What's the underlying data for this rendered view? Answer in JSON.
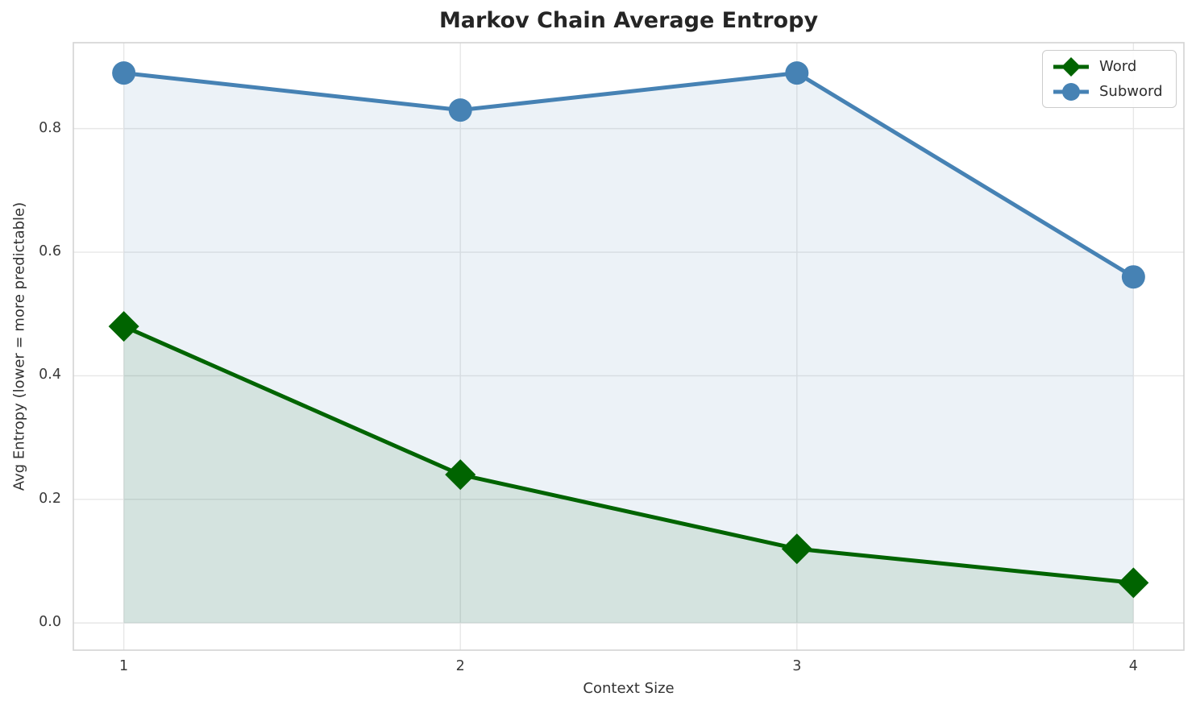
{
  "chart_data": {
    "type": "line",
    "title": "Markov Chain Average Entropy",
    "xlabel": "Context Size",
    "ylabel": "Avg Entropy (lower = more predictable)",
    "x": [
      1,
      2,
      3,
      4
    ],
    "series": [
      {
        "name": "Word",
        "values": [
          0.48,
          0.24,
          0.12,
          0.065
        ],
        "color": "#006400",
        "marker": "diamond",
        "area_fill": true
      },
      {
        "name": "Subword",
        "values": [
          0.89,
          0.83,
          0.89,
          0.56
        ],
        "color": "#4682B4",
        "marker": "circle",
        "area_fill": true
      }
    ],
    "xlim": [
      0.85,
      4.15
    ],
    "ylim": [
      -0.044,
      0.939
    ],
    "x_tick_labels": [
      "1",
      "2",
      "3",
      "4"
    ],
    "y_ticks": [
      0.0,
      0.2,
      0.4,
      0.6,
      0.8
    ],
    "y_tick_labels": [
      "0.0",
      "0.2",
      "0.4",
      "0.6",
      "0.8"
    ],
    "grid": true,
    "legend_position": "upper right",
    "fill_alpha": 0.1,
    "colors": {
      "grid": "#e7e7e7",
      "frame": "#d3d3d3",
      "title_text": "#252525",
      "axis_text": "#3a3a3a"
    }
  }
}
